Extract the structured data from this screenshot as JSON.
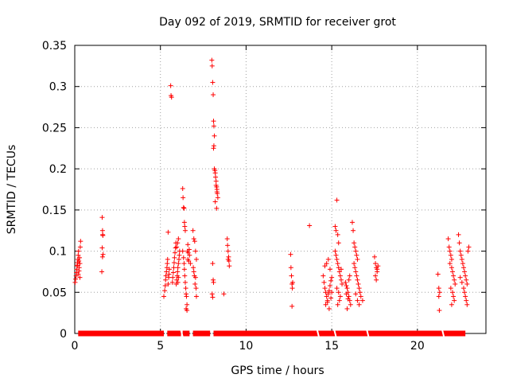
{
  "chart_data": {
    "type": "scatter",
    "title": "Day 092 of 2019, SRMTID for receiver grot",
    "xlabel": "GPS time / hours",
    "ylabel": "SRMTID / TECUs",
    "xlim": [
      0,
      24
    ],
    "ylim": [
      0,
      0.35
    ],
    "x_ticks": [
      0,
      5,
      10,
      15,
      20
    ],
    "y_ticks": [
      0,
      0.05,
      0.1,
      0.15,
      0.2,
      0.25,
      0.3,
      0.35
    ],
    "x_tick_labels": [
      "0",
      "5",
      "10",
      "15",
      "20"
    ],
    "y_tick_labels": [
      "0",
      "0.05",
      "0.1",
      "0.15",
      "0.2",
      "0.25",
      "0.3",
      "0.35"
    ],
    "grid": true,
    "marker": "+",
    "color": "#ff0000",
    "series": [
      {
        "name": "SRMTID",
        "points": [
          [
            0.02,
            0.062
          ],
          [
            0.05,
            0.066
          ],
          [
            0.08,
            0.07
          ],
          [
            0.1,
            0.074
          ],
          [
            0.12,
            0.078
          ],
          [
            0.14,
            0.082
          ],
          [
            0.16,
            0.086
          ],
          [
            0.18,
            0.09
          ],
          [
            0.2,
            0.095
          ],
          [
            0.22,
            0.1
          ],
          [
            0.24,
            0.088
          ],
          [
            0.26,
            0.08
          ],
          [
            0.28,
            0.092
          ],
          [
            0.3,
            0.085
          ],
          [
            0.32,
            0.105
          ],
          [
            0.34,
            0.112
          ],
          [
            0.2,
            0.072
          ],
          [
            0.25,
            0.076
          ],
          [
            0.3,
            0.068
          ],
          [
            0.15,
            0.083
          ],
          [
            1.6,
            0.141
          ],
          [
            1.62,
            0.125
          ],
          [
            1.64,
            0.119
          ],
          [
            1.6,
            0.104
          ],
          [
            1.65,
            0.096
          ],
          [
            1.62,
            0.093
          ],
          [
            1.58,
            0.075
          ],
          [
            1.63,
            0.12
          ],
          [
            5.2,
            0.045
          ],
          [
            5.25,
            0.052
          ],
          [
            5.28,
            0.058
          ],
          [
            5.3,
            0.065
          ],
          [
            5.32,
            0.07
          ],
          [
            5.35,
            0.075
          ],
          [
            5.38,
            0.08
          ],
          [
            5.4,
            0.085
          ],
          [
            5.42,
            0.09
          ],
          [
            5.45,
            0.06
          ],
          [
            5.48,
            0.068
          ],
          [
            5.5,
            0.072
          ],
          [
            5.52,
            0.078
          ],
          [
            5.45,
            0.123
          ],
          [
            5.6,
            0.301
          ],
          [
            5.62,
            0.289
          ],
          [
            5.65,
            0.287
          ],
          [
            5.7,
            0.062
          ],
          [
            5.72,
            0.068
          ],
          [
            5.75,
            0.074
          ],
          [
            5.78,
            0.08
          ],
          [
            5.8,
            0.086
          ],
          [
            5.82,
            0.092
          ],
          [
            5.85,
            0.098
          ],
          [
            5.88,
            0.104
          ],
          [
            5.9,
            0.11
          ],
          [
            5.92,
            0.06
          ],
          [
            5.95,
            0.065
          ],
          [
            5.98,
            0.07
          ],
          [
            6.0,
            0.075
          ],
          [
            6.02,
            0.08
          ],
          [
            6.05,
            0.085
          ],
          [
            6.08,
            0.09
          ],
          [
            6.1,
            0.095
          ],
          [
            6.12,
            0.1
          ],
          [
            6.0,
            0.11
          ],
          [
            6.05,
            0.115
          ],
          [
            5.95,
            0.105
          ],
          [
            6.02,
            0.062
          ],
          [
            6.05,
            0.068
          ],
          [
            6.3,
            0.176
          ],
          [
            6.32,
            0.165
          ],
          [
            6.35,
            0.153
          ],
          [
            6.38,
            0.152
          ],
          [
            6.4,
            0.135
          ],
          [
            6.42,
            0.13
          ],
          [
            6.45,
            0.125
          ],
          [
            6.3,
            0.1
          ],
          [
            6.35,
            0.092
          ],
          [
            6.38,
            0.085
          ],
          [
            6.4,
            0.078
          ],
          [
            6.42,
            0.07
          ],
          [
            6.45,
            0.062
          ],
          [
            6.48,
            0.055
          ],
          [
            6.5,
            0.048
          ],
          [
            6.52,
            0.045
          ],
          [
            6.55,
            0.035
          ],
          [
            6.5,
            0.03
          ],
          [
            6.55,
            0.028
          ],
          [
            6.58,
            0.1
          ],
          [
            6.6,
            0.108
          ],
          [
            6.62,
            0.098
          ],
          [
            6.65,
            0.088
          ],
          [
            6.6,
            0.09
          ],
          [
            6.68,
            0.102
          ],
          [
            6.7,
            0.095
          ],
          [
            6.75,
            0.085
          ],
          [
            6.9,
            0.125
          ],
          [
            6.95,
            0.115
          ],
          [
            7.0,
            0.112
          ],
          [
            7.05,
            0.1
          ],
          [
            7.1,
            0.09
          ],
          [
            6.92,
            0.08
          ],
          [
            6.98,
            0.07
          ],
          [
            7.02,
            0.06
          ],
          [
            7.08,
            0.055
          ],
          [
            7.1,
            0.045
          ],
          [
            6.95,
            0.075
          ],
          [
            7.05,
            0.068
          ],
          [
            8.0,
            0.332
          ],
          [
            8.02,
            0.325
          ],
          [
            8.05,
            0.305
          ],
          [
            8.08,
            0.29
          ],
          [
            8.1,
            0.258
          ],
          [
            8.12,
            0.252
          ],
          [
            8.15,
            0.24
          ],
          [
            8.12,
            0.228
          ],
          [
            8.1,
            0.225
          ],
          [
            8.15,
            0.2
          ],
          [
            8.18,
            0.198
          ],
          [
            8.2,
            0.195
          ],
          [
            8.22,
            0.19
          ],
          [
            8.25,
            0.185
          ],
          [
            8.28,
            0.178
          ],
          [
            8.3,
            0.175
          ],
          [
            8.32,
            0.17
          ],
          [
            8.35,
            0.165
          ],
          [
            8.2,
            0.16
          ],
          [
            8.28,
            0.152
          ],
          [
            8.3,
            0.172
          ],
          [
            8.25,
            0.18
          ],
          [
            8.05,
            0.085
          ],
          [
            8.08,
            0.065
          ],
          [
            8.1,
            0.062
          ],
          [
            8.02,
            0.048
          ],
          [
            8.05,
            0.044
          ],
          [
            8.7,
            0.048
          ],
          [
            8.9,
            0.115
          ],
          [
            8.92,
            0.107
          ],
          [
            8.95,
            0.1
          ],
          [
            8.98,
            0.093
          ],
          [
            9.0,
            0.088
          ],
          [
            9.02,
            0.082
          ],
          [
            8.95,
            0.09
          ],
          [
            12.6,
            0.096
          ],
          [
            12.62,
            0.08
          ],
          [
            12.65,
            0.07
          ],
          [
            12.68,
            0.06
          ],
          [
            12.7,
            0.055
          ],
          [
            12.72,
            0.062
          ],
          [
            12.68,
            0.033
          ],
          [
            13.7,
            0.131
          ],
          [
            14.5,
            0.07
          ],
          [
            14.55,
            0.062
          ],
          [
            14.6,
            0.055
          ],
          [
            14.65,
            0.05
          ],
          [
            14.7,
            0.045
          ],
          [
            14.75,
            0.04
          ],
          [
            14.8,
            0.048
          ],
          [
            14.85,
            0.052
          ],
          [
            14.9,
            0.058
          ],
          [
            14.95,
            0.064
          ],
          [
            15.0,
            0.068
          ],
          [
            14.6,
            0.082
          ],
          [
            14.7,
            0.085
          ],
          [
            14.8,
            0.09
          ],
          [
            14.9,
            0.078
          ],
          [
            15.0,
            0.05
          ],
          [
            14.65,
            0.035
          ],
          [
            14.75,
            0.038
          ],
          [
            14.85,
            0.03
          ],
          [
            14.95,
            0.043
          ],
          [
            15.2,
            0.13
          ],
          [
            15.25,
            0.125
          ],
          [
            15.3,
            0.162
          ],
          [
            15.35,
            0.12
          ],
          [
            15.4,
            0.11
          ],
          [
            15.2,
            0.1
          ],
          [
            15.25,
            0.095
          ],
          [
            15.3,
            0.09
          ],
          [
            15.35,
            0.085
          ],
          [
            15.4,
            0.08
          ],
          [
            15.45,
            0.075
          ],
          [
            15.5,
            0.07
          ],
          [
            15.55,
            0.065
          ],
          [
            15.6,
            0.06
          ],
          [
            15.3,
            0.055
          ],
          [
            15.4,
            0.05
          ],
          [
            15.5,
            0.045
          ],
          [
            15.45,
            0.04
          ],
          [
            15.35,
            0.035
          ],
          [
            15.55,
            0.078
          ],
          [
            15.8,
            0.062
          ],
          [
            15.85,
            0.058
          ],
          [
            15.9,
            0.055
          ],
          [
            15.95,
            0.05
          ],
          [
            16.0,
            0.045
          ],
          [
            16.05,
            0.04
          ],
          [
            16.1,
            0.035
          ],
          [
            15.9,
            0.03
          ],
          [
            16.0,
            0.065
          ],
          [
            16.05,
            0.07
          ],
          [
            15.85,
            0.048
          ],
          [
            15.95,
            0.042
          ],
          [
            16.2,
            0.135
          ],
          [
            16.25,
            0.125
          ],
          [
            16.3,
            0.11
          ],
          [
            16.35,
            0.105
          ],
          [
            16.4,
            0.1
          ],
          [
            16.45,
            0.095
          ],
          [
            16.5,
            0.09
          ],
          [
            16.3,
            0.085
          ],
          [
            16.35,
            0.08
          ],
          [
            16.4,
            0.075
          ],
          [
            16.45,
            0.07
          ],
          [
            16.5,
            0.065
          ],
          [
            16.55,
            0.06
          ],
          [
            16.6,
            0.055
          ],
          [
            16.65,
            0.05
          ],
          [
            16.7,
            0.045
          ],
          [
            16.5,
            0.04
          ],
          [
            16.6,
            0.035
          ],
          [
            16.4,
            0.048
          ],
          [
            16.8,
            0.04
          ],
          [
            17.5,
            0.093
          ],
          [
            17.55,
            0.085
          ],
          [
            17.6,
            0.08
          ],
          [
            17.65,
            0.075
          ],
          [
            17.55,
            0.07
          ],
          [
            17.6,
            0.065
          ],
          [
            17.65,
            0.078
          ],
          [
            17.7,
            0.082
          ],
          [
            21.2,
            0.072
          ],
          [
            21.25,
            0.055
          ],
          [
            21.3,
            0.05
          ],
          [
            21.25,
            0.045
          ],
          [
            21.28,
            0.028
          ],
          [
            21.8,
            0.115
          ],
          [
            21.85,
            0.105
          ],
          [
            21.9,
            0.1
          ],
          [
            21.95,
            0.095
          ],
          [
            22.0,
            0.09
          ],
          [
            21.9,
            0.085
          ],
          [
            22.0,
            0.08
          ],
          [
            22.05,
            0.075
          ],
          [
            22.1,
            0.07
          ],
          [
            22.15,
            0.065
          ],
          [
            22.2,
            0.06
          ],
          [
            21.95,
            0.055
          ],
          [
            22.05,
            0.05
          ],
          [
            22.1,
            0.045
          ],
          [
            22.15,
            0.04
          ],
          [
            22.0,
            0.035
          ],
          [
            22.4,
            0.12
          ],
          [
            22.45,
            0.11
          ],
          [
            22.5,
            0.1
          ],
          [
            22.55,
            0.095
          ],
          [
            22.6,
            0.09
          ],
          [
            22.65,
            0.085
          ],
          [
            22.7,
            0.08
          ],
          [
            22.75,
            0.075
          ],
          [
            22.8,
            0.07
          ],
          [
            22.85,
            0.065
          ],
          [
            22.9,
            0.06
          ],
          [
            22.7,
            0.055
          ],
          [
            22.75,
            0.05
          ],
          [
            22.8,
            0.045
          ],
          [
            22.85,
            0.04
          ],
          [
            22.9,
            0.035
          ],
          [
            22.95,
            0.1
          ],
          [
            23.0,
            0.105
          ],
          [
            22.6,
            0.062
          ],
          [
            22.5,
            0.068
          ]
        ]
      }
    ],
    "zero_baseline": {
      "y": 0,
      "x_ranges": [
        [
          0.2,
          5.2
        ],
        [
          5.4,
          6.2
        ],
        [
          6.3,
          6.7
        ],
        [
          6.9,
          7.9
        ],
        [
          8.1,
          22.8
        ]
      ],
      "gaps": [
        5.3,
        6.25,
        6.8,
        8.0,
        14.2,
        15.2,
        17.1,
        21.5
      ]
    }
  }
}
